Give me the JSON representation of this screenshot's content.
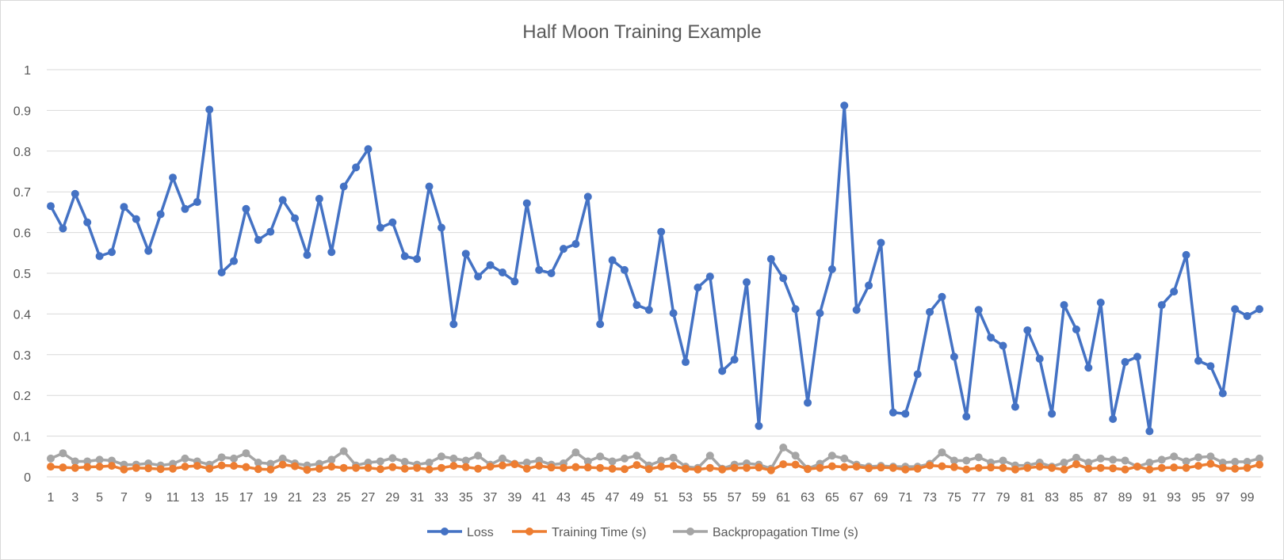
{
  "chart_data": {
    "type": "line",
    "title": "Half Moon Training Example",
    "xlabel": "",
    "ylabel": "",
    "x_start": 1,
    "x_end": 100,
    "x_tick_labels": [
      "1",
      "3",
      "5",
      "7",
      "9",
      "11",
      "13",
      "15",
      "17",
      "19",
      "21",
      "23",
      "25",
      "27",
      "29",
      "31",
      "33",
      "35",
      "37",
      "39",
      "41",
      "43",
      "45",
      "47",
      "49",
      "51",
      "53",
      "55",
      "57",
      "59",
      "61",
      "63",
      "65",
      "67",
      "69",
      "71",
      "73",
      "75",
      "77",
      "79",
      "81",
      "83",
      "85",
      "87",
      "89",
      "91",
      "93",
      "95",
      "97",
      "99"
    ],
    "y_tick_labels": [
      "0",
      "0.1",
      "0.2",
      "0.3",
      "0.4",
      "0.5",
      "0.6",
      "0.7",
      "0.8",
      "0.9",
      "1"
    ],
    "ylim": [
      0,
      1
    ],
    "grid": true,
    "legend_position": "bottom",
    "series": [
      {
        "name": "Loss",
        "color": "#4472c4",
        "values": [
          0.665,
          0.61,
          0.695,
          0.625,
          0.542,
          0.552,
          0.663,
          0.633,
          0.555,
          0.645,
          0.735,
          0.658,
          0.675,
          0.902,
          0.502,
          0.53,
          0.658,
          0.582,
          0.602,
          0.68,
          0.635,
          0.545,
          0.683,
          0.552,
          0.713,
          0.76,
          0.805,
          0.612,
          0.625,
          0.542,
          0.535,
          0.713,
          0.612,
          0.375,
          0.548,
          0.492,
          0.52,
          0.502,
          0.48,
          0.672,
          0.508,
          0.5,
          0.56,
          0.572,
          0.688,
          0.375,
          0.532,
          0.508,
          0.422,
          0.41,
          0.602,
          0.402,
          0.282,
          0.465,
          0.492,
          0.26,
          0.288,
          0.478,
          0.125,
          0.535,
          0.488,
          0.412,
          0.182,
          0.402,
          0.51,
          0.912,
          0.41,
          0.47,
          0.575,
          0.158,
          0.155,
          0.252,
          0.405,
          0.442,
          0.295,
          0.148,
          0.41,
          0.342,
          0.322,
          0.172,
          0.36,
          0.29,
          0.155,
          0.422,
          0.362,
          0.268,
          0.428,
          0.142,
          0.282,
          0.295,
          0.112,
          0.422,
          0.455,
          0.545,
          0.285,
          0.272,
          0.205,
          0.412,
          0.395,
          0.412
        ]
      },
      {
        "name": "Training Time (s)",
        "color": "#ed7d31",
        "values": [
          0.025,
          0.023,
          0.022,
          0.024,
          0.025,
          0.027,
          0.018,
          0.022,
          0.021,
          0.019,
          0.02,
          0.025,
          0.027,
          0.02,
          0.028,
          0.027,
          0.024,
          0.019,
          0.018,
          0.03,
          0.026,
          0.017,
          0.02,
          0.025,
          0.022,
          0.022,
          0.022,
          0.019,
          0.024,
          0.02,
          0.022,
          0.018,
          0.022,
          0.027,
          0.024,
          0.02,
          0.025,
          0.028,
          0.031,
          0.02,
          0.027,
          0.023,
          0.022,
          0.024,
          0.023,
          0.022,
          0.02,
          0.019,
          0.029,
          0.019,
          0.025,
          0.027,
          0.02,
          0.018,
          0.022,
          0.018,
          0.022,
          0.022,
          0.023,
          0.016,
          0.031,
          0.03,
          0.019,
          0.022,
          0.026,
          0.024,
          0.025,
          0.021,
          0.023,
          0.022,
          0.018,
          0.02,
          0.028,
          0.026,
          0.024,
          0.018,
          0.022,
          0.023,
          0.022,
          0.018,
          0.022,
          0.025,
          0.022,
          0.018,
          0.031,
          0.02,
          0.022,
          0.021,
          0.018,
          0.025,
          0.018,
          0.022,
          0.023,
          0.022,
          0.027,
          0.032,
          0.022,
          0.02,
          0.022,
          0.03
        ]
      },
      {
        "name": "Backpropagation TIme (s)",
        "color": "#a5a5a5",
        "values": [
          0.045,
          0.058,
          0.038,
          0.038,
          0.042,
          0.04,
          0.03,
          0.03,
          0.033,
          0.028,
          0.032,
          0.045,
          0.038,
          0.03,
          0.048,
          0.045,
          0.058,
          0.035,
          0.032,
          0.045,
          0.033,
          0.028,
          0.032,
          0.042,
          0.063,
          0.028,
          0.035,
          0.038,
          0.046,
          0.037,
          0.03,
          0.035,
          0.05,
          0.045,
          0.04,
          0.052,
          0.03,
          0.045,
          0.032,
          0.035,
          0.04,
          0.03,
          0.033,
          0.06,
          0.038,
          0.05,
          0.038,
          0.045,
          0.052,
          0.028,
          0.04,
          0.047,
          0.025,
          0.022,
          0.052,
          0.02,
          0.03,
          0.033,
          0.03,
          0.02,
          0.072,
          0.052,
          0.02,
          0.032,
          0.052,
          0.045,
          0.03,
          0.025,
          0.027,
          0.025,
          0.025,
          0.025,
          0.032,
          0.06,
          0.04,
          0.04,
          0.048,
          0.035,
          0.04,
          0.028,
          0.028,
          0.035,
          0.025,
          0.035,
          0.047,
          0.035,
          0.045,
          0.042,
          0.04,
          0.025,
          0.035,
          0.042,
          0.05,
          0.038,
          0.048,
          0.05,
          0.035,
          0.037,
          0.037,
          0.045
        ]
      }
    ]
  }
}
